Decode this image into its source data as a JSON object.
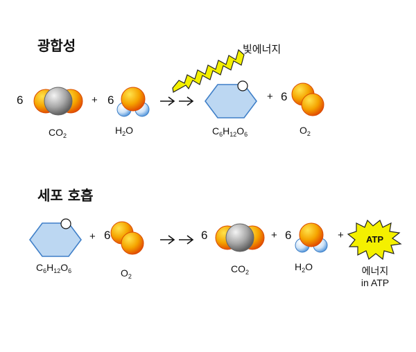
{
  "photosynthesis": {
    "title": "광합성",
    "energy_label": "빛에너지",
    "reactants": [
      {
        "coefficient": "6",
        "molecule": "CO2",
        "sub": "2"
      },
      {
        "plus": "+",
        "coefficient": "6",
        "molecule": "H2O"
      }
    ],
    "products": [
      {
        "molecule": "C6H12O6"
      },
      {
        "plus": "+",
        "coefficient": "6",
        "molecule": "O2"
      }
    ]
  },
  "respiration": {
    "title": "세포 호흡",
    "reactants": [
      {
        "molecule": "C6H12O6"
      },
      {
        "plus": "+",
        "coefficient": "6",
        "molecule": "O2"
      }
    ],
    "products": [
      {
        "coefficient": "6",
        "molecule": "CO2"
      },
      {
        "plus": "+",
        "coefficient": "6",
        "molecule": "H2O"
      },
      {
        "plus": "+",
        "badge": "ATP",
        "label_line1": "에너지",
        "label_line2": "in ATP"
      }
    ]
  },
  "colors": {
    "oxygen_atom": "#f5a400",
    "carbon_atom": "#9a9a9a",
    "hydrogen_atom": "#4a90d9",
    "glucose_fill": "#bcd7f2",
    "glucose_stroke": "#3f7fc8",
    "lightning": "#f4f000",
    "atp_star": "#f4f000"
  }
}
